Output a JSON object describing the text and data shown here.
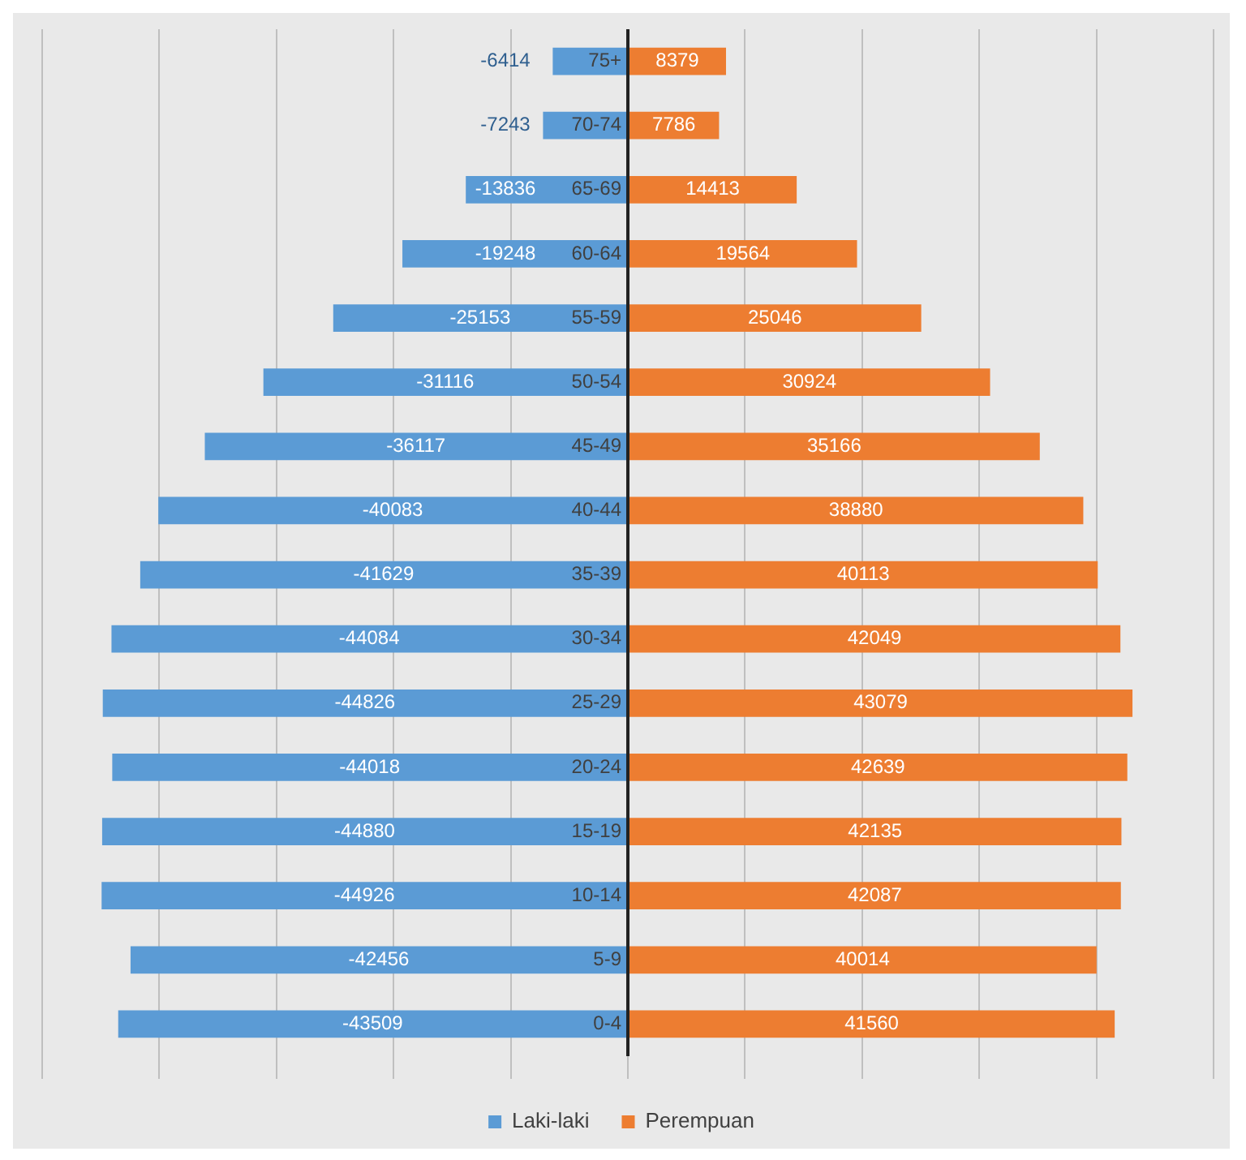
{
  "chart_data": {
    "type": "bar",
    "orientation": "horizontal",
    "stacked": true,
    "categories": [
      "75+",
      "70-74",
      "65-69",
      "60-64",
      "55-59",
      "50-54",
      "45-49",
      "40-44",
      "35-39",
      "30-34",
      "25-29",
      "20-24",
      "15-19",
      "10-14",
      "5-9",
      "0-4"
    ],
    "series": [
      {
        "name": "Laki-laki",
        "color": "#5b9bd5",
        "values": [
          -6414,
          -7243,
          -13836,
          -19248,
          -25153,
          -31116,
          -36117,
          -40083,
          -41629,
          -44084,
          -44826,
          -44018,
          -44880,
          -44926,
          -42456,
          -43509
        ]
      },
      {
        "name": "Perempuan",
        "color": "#ed7d31",
        "values": [
          8379,
          7786,
          14413,
          19564,
          25046,
          30924,
          35166,
          38880,
          40113,
          42049,
          43079,
          42639,
          42135,
          42087,
          40014,
          41560
        ]
      }
    ],
    "xlim": [
      -50000,
      50000
    ],
    "xticks": [
      {
        "value": -50000,
        "label": null
      },
      {
        "value": -40000,
        "label": null
      },
      {
        "value": -30000,
        "label": null
      },
      {
        "value": -20000,
        "label": null
      },
      {
        "value": -10000,
        "label": null
      },
      {
        "value": 0,
        "label": null
      },
      {
        "value": 10000,
        "label": null
      },
      {
        "value": 20000,
        "label": null
      },
      {
        "value": 30000,
        "label": null
      },
      {
        "value": 40000,
        "label": null
      },
      {
        "value": 50000,
        "label": null
      }
    ],
    "tick_labels": "y",
    "grid": "x",
    "data_labels": true,
    "legend": "bottom"
  }
}
